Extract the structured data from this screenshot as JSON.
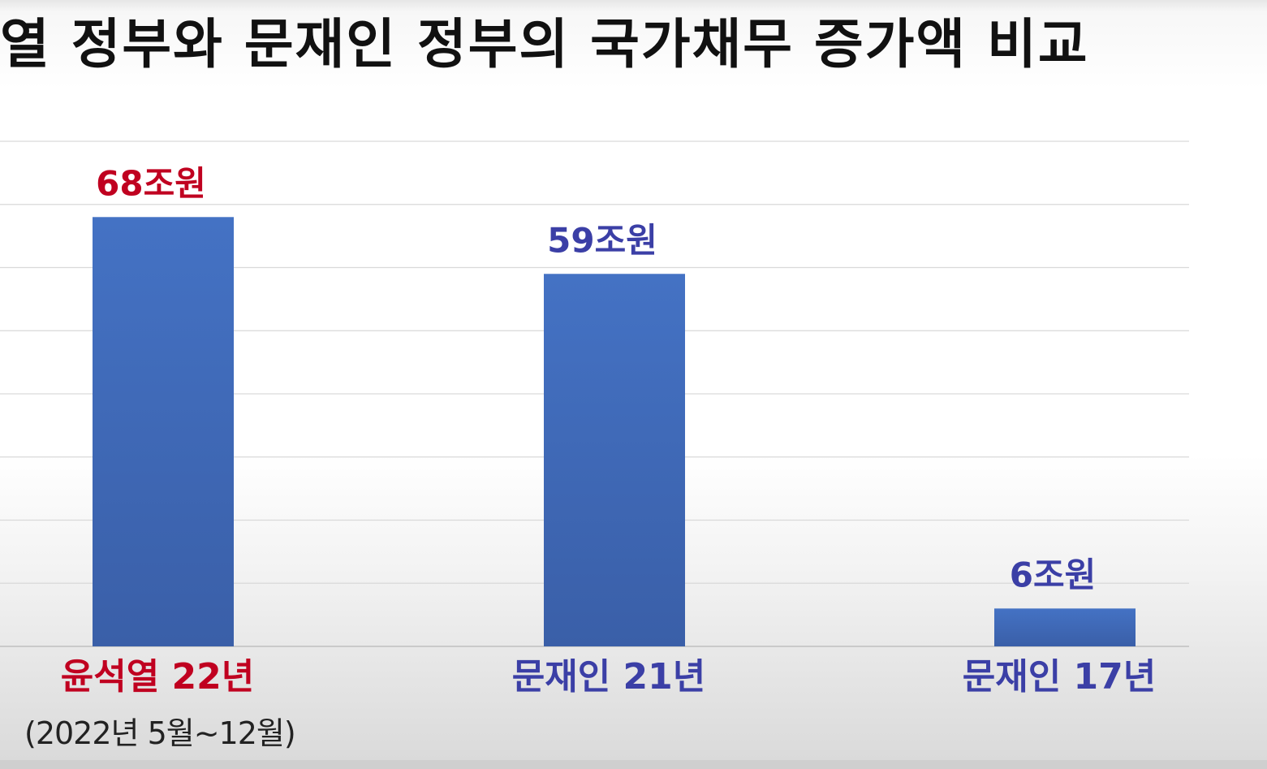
{
  "title": "열 정부와 문재인 정부의 국가채무 증가액 비교",
  "footnote": "(2022년 5월~12월)",
  "colors": {
    "bar": "#4472c4",
    "bar_dark": "#3a5fa8",
    "highlight_red": "#c00020",
    "label_blue": "#3b3fa6",
    "grid": "#d9d9d9"
  },
  "chart_data": {
    "type": "bar",
    "categories": [
      "윤석열 22년",
      "문재인 21년",
      "문재인 17년"
    ],
    "values": [
      68,
      59,
      6
    ],
    "value_labels": [
      "68조원",
      "59조원",
      "6조원"
    ],
    "category_colors": [
      "#c00020",
      "#3b3fa6",
      "#3b3fa6"
    ],
    "ylim": [
      0,
      80
    ],
    "grid": true
  }
}
